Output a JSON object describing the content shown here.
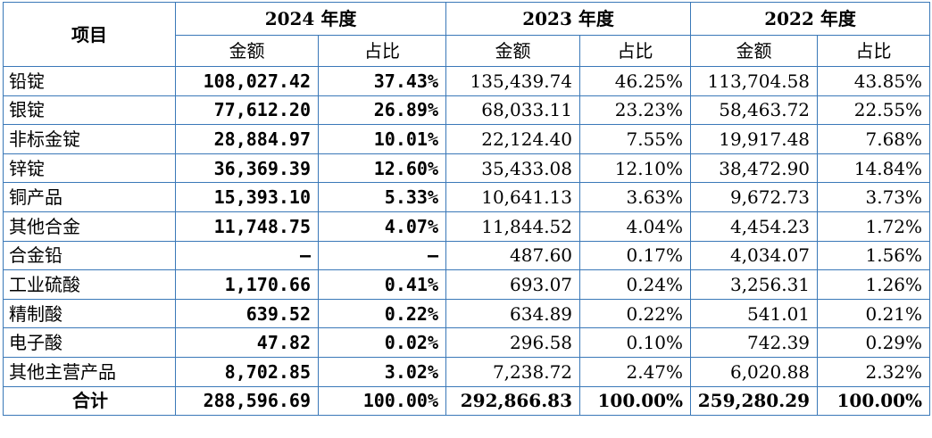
{
  "header": {
    "item_label": "项目",
    "years": [
      "2024 年度",
      "2023 年度",
      "2022 年度"
    ],
    "amount_label": "金额",
    "ratio_label": "占比"
  },
  "rows": [
    {
      "name": "铅锭",
      "v2024": "108,027.42",
      "p2024": "37.43%",
      "v2023": "135,439.74",
      "p2023": "46.25%",
      "v2022": "113,704.58",
      "p2022": "43.85%"
    },
    {
      "name": "银锭",
      "v2024": "77,612.20",
      "p2024": "26.89%",
      "v2023": "68,033.11",
      "p2023": "23.23%",
      "v2022": "58,463.72",
      "p2022": "22.55%"
    },
    {
      "name": "非标金锭",
      "v2024": "28,884.97",
      "p2024": "10.01%",
      "v2023": "22,124.40",
      "p2023": "7.55%",
      "v2022": "19,917.48",
      "p2022": "7.68%"
    },
    {
      "name": "锌锭",
      "v2024": "36,369.39",
      "p2024": "12.60%",
      "v2023": "35,433.08",
      "p2023": "12.10%",
      "v2022": "38,472.90",
      "p2022": "14.84%"
    },
    {
      "name": "铜产品",
      "v2024": "15,393.10",
      "p2024": "5.33%",
      "v2023": "10,641.13",
      "p2023": "3.63%",
      "v2022": "9,672.73",
      "p2022": "3.73%"
    },
    {
      "name": "其他合金",
      "v2024": "11,748.75",
      "p2024": "4.07%",
      "v2023": "11,844.52",
      "p2023": "4.04%",
      "v2022": "4,454.23",
      "p2022": "1.72%"
    },
    {
      "name": "合金铅",
      "v2024": "–",
      "p2024": "–",
      "v2023": "487.60",
      "p2023": "0.17%",
      "v2022": "4,034.07",
      "p2022": "1.56%"
    },
    {
      "name": "工业硫酸",
      "v2024": "1,170.66",
      "p2024": "0.41%",
      "v2023": "693.07",
      "p2023": "0.24%",
      "v2022": "3,256.31",
      "p2022": "1.26%"
    },
    {
      "name": "精制酸",
      "v2024": "639.52",
      "p2024": "0.22%",
      "v2023": "634.89",
      "p2023": "0.22%",
      "v2022": "541.01",
      "p2022": "0.21%"
    },
    {
      "name": "电子酸",
      "v2024": "47.82",
      "p2024": "0.02%",
      "v2023": "296.58",
      "p2023": "0.10%",
      "v2022": "742.39",
      "p2022": "0.29%"
    },
    {
      "name": "其他主营产品",
      "v2024": "8,702.85",
      "p2024": "3.02%",
      "v2023": "7,238.72",
      "p2023": "2.47%",
      "v2022": "6,020.88",
      "p2022": "2.32%"
    }
  ],
  "total": {
    "name": "合计",
    "v2024": "288,596.69",
    "p2024": "100.00%",
    "v2023": "292,866.83",
    "p2023": "100.00%",
    "v2022": "259,280.29",
    "p2022": "100.00%"
  },
  "colors": {
    "border": "#3a78b8",
    "text": "#000000",
    "background": "#ffffff"
  }
}
